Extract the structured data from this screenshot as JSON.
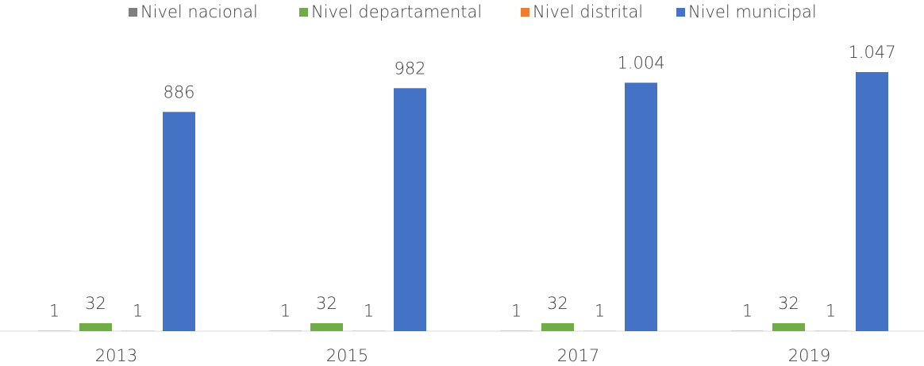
{
  "chart_data": {
    "type": "bar",
    "categories": [
      "2013",
      "2015",
      "2017",
      "2019"
    ],
    "series": [
      {
        "name": "Nivel nacional",
        "color": "#7f7f7f",
        "values": [
          1,
          1,
          1,
          1
        ]
      },
      {
        "name": "Nivel departamental",
        "color": "#70ad47",
        "values": [
          32,
          32,
          32,
          32
        ]
      },
      {
        "name": "Nivel distrital",
        "color": "#ed7d31",
        "values": [
          1,
          1,
          1,
          1
        ]
      },
      {
        "name": "Nivel municipal",
        "color": "#4472c4",
        "values": [
          886,
          982,
          1004,
          1047
        ],
        "value_labels": [
          "886",
          "982",
          "1.004",
          "1.047"
        ]
      }
    ],
    "legend": "top"
  }
}
